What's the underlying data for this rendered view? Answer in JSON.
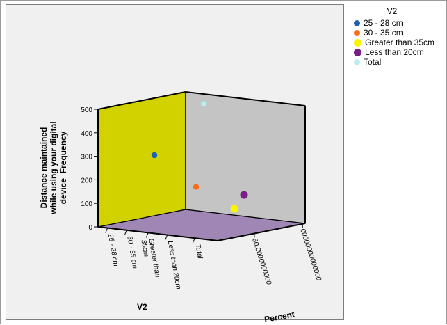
{
  "chart_data": {
    "type": "scatter",
    "projection": "3d",
    "title": "",
    "xlabel": "V2",
    "ylabel": "Distance  maintained while using your digital device_Frequency",
    "zlabel": "Percent",
    "x_categories": [
      "25 - 28 cm",
      "30 - 35 cm",
      "Greater than 35cm",
      "Less than 20cm",
      "Total"
    ],
    "x_tick_labels": [
      "25 - 28 cm",
      "30 - 35 cm",
      "Greater than\n35cm",
      "Less than 20cm",
      "Total"
    ],
    "ylim": [
      0,
      500
    ],
    "y_ticks": [
      0,
      100,
      200,
      300,
      400,
      500
    ],
    "z_tick_labels": [
      "60.0000000000",
      "00000000000000"
    ],
    "series": [
      {
        "name": "25 - 28 cm",
        "color": "#1f5fb4",
        "category": 0,
        "y": 287,
        "z": 0.15
      },
      {
        "name": "30 - 35 cm",
        "color": "#ff6a1a",
        "category": 1,
        "y": 170,
        "z": 0.6
      },
      {
        "name": "Greater than 35cm",
        "color": "#f7f700",
        "category": 2,
        "y": 65,
        "z": 0.95
      },
      {
        "name": "Less than 20cm",
        "color": "#7a1e88",
        "category": 3,
        "y": 118,
        "z": 1.0
      },
      {
        "name": "Total",
        "color": "#bfeaf0",
        "category": 4,
        "y": 452,
        "z": 0.55
      }
    ],
    "walls": {
      "left": "#d2d200",
      "back": "#c4c4c4",
      "floor": "#9f86b5",
      "background": "#f0f0f0"
    }
  },
  "legend": {
    "title": "V2",
    "placement": "right",
    "items": [
      {
        "label": "25 - 28 cm",
        "color": "#1f5fb4",
        "icon": "circle-marker"
      },
      {
        "label": "30 - 35 cm",
        "color": "#ff6a1a",
        "icon": "circle-marker"
      },
      {
        "label": "Greater than 35cm",
        "color": "#f7f700",
        "icon": "circle-marker"
      },
      {
        "label": "Less than 20cm",
        "color": "#7a1e88",
        "icon": "circle-marker"
      },
      {
        "label": "Total",
        "color": "#bfeaf0",
        "icon": "circle-marker"
      }
    ]
  }
}
